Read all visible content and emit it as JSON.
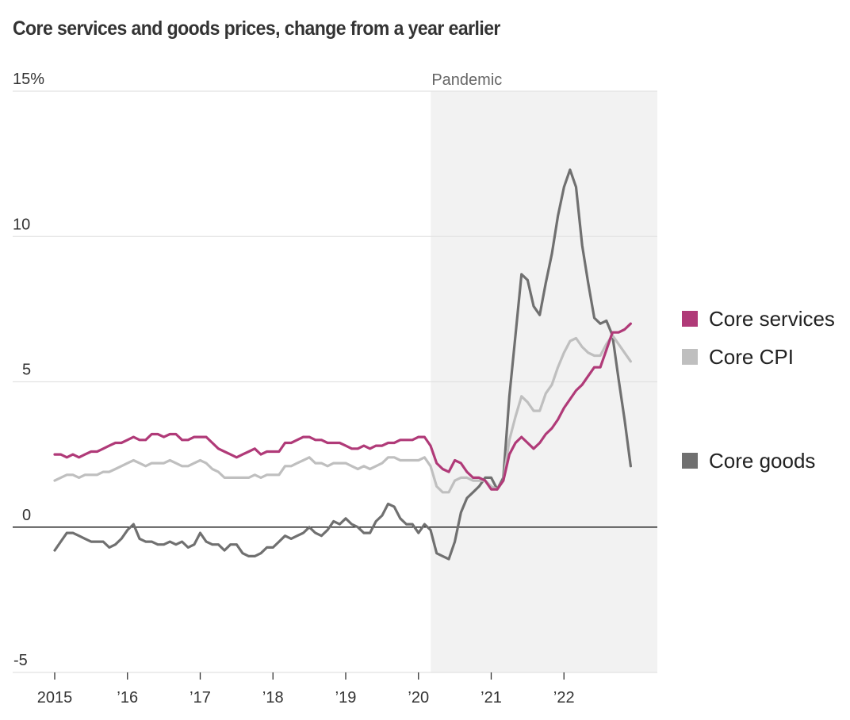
{
  "chart_data": {
    "type": "line",
    "title": "Core services and goods prices, change from a year earlier",
    "xlabel": "",
    "ylabel": "",
    "y_unit": "%",
    "ylim": [
      -5,
      15
    ],
    "yticks": [
      {
        "value": 15,
        "label": "15%"
      },
      {
        "value": 10,
        "label": "10"
      },
      {
        "value": 5,
        "label": "5"
      },
      {
        "value": 0,
        "label": "0"
      },
      {
        "value": -5,
        "label": "-5"
      }
    ],
    "xlim": [
      2015.0,
      2023.0
    ],
    "xticks": [
      {
        "value": 2015,
        "label": "2015"
      },
      {
        "value": 2016,
        "label": "’16"
      },
      {
        "value": 2017,
        "label": "’17"
      },
      {
        "value": 2018,
        "label": "’18"
      },
      {
        "value": 2019,
        "label": "’19"
      },
      {
        "value": 2020,
        "label": "’20"
      },
      {
        "value": 2021,
        "label": "’21"
      },
      {
        "value": 2022,
        "label": "’22"
      }
    ],
    "grid": true,
    "x_start": 2015.0,
    "x_step_months": 1,
    "annotation_band": {
      "label": "Pandemic",
      "from": 2020.17,
      "to": 2023.0
    },
    "legend_position": "right",
    "series": [
      {
        "name": "Core services",
        "color": "#b03a78",
        "values": [
          2.5,
          2.5,
          2.4,
          2.5,
          2.4,
          2.5,
          2.6,
          2.6,
          2.7,
          2.8,
          2.9,
          2.9,
          3.0,
          3.1,
          3.0,
          3.0,
          3.2,
          3.2,
          3.1,
          3.2,
          3.2,
          3.0,
          3.0,
          3.1,
          3.1,
          3.1,
          2.9,
          2.7,
          2.6,
          2.5,
          2.4,
          2.5,
          2.6,
          2.7,
          2.5,
          2.6,
          2.6,
          2.6,
          2.9,
          2.9,
          3.0,
          3.1,
          3.1,
          3.0,
          3.0,
          2.9,
          2.9,
          2.9,
          2.8,
          2.7,
          2.7,
          2.8,
          2.7,
          2.8,
          2.8,
          2.9,
          2.9,
          3.0,
          3.0,
          3.0,
          3.1,
          3.1,
          2.8,
          2.2,
          2.0,
          1.9,
          2.3,
          2.2,
          1.9,
          1.7,
          1.7,
          1.6,
          1.3,
          1.3,
          1.6,
          2.5,
          2.9,
          3.1,
          2.9,
          2.7,
          2.9,
          3.2,
          3.4,
          3.7,
          4.1,
          4.4,
          4.7,
          4.9,
          5.2,
          5.5,
          5.5,
          6.1,
          6.7,
          6.7,
          6.8,
          7.0
        ]
      },
      {
        "name": "Core CPI",
        "color": "#bfbfbf",
        "values": [
          1.6,
          1.7,
          1.8,
          1.8,
          1.7,
          1.8,
          1.8,
          1.8,
          1.9,
          1.9,
          2.0,
          2.1,
          2.2,
          2.3,
          2.2,
          2.1,
          2.2,
          2.2,
          2.2,
          2.3,
          2.2,
          2.1,
          2.1,
          2.2,
          2.3,
          2.2,
          2.0,
          1.9,
          1.7,
          1.7,
          1.7,
          1.7,
          1.7,
          1.8,
          1.7,
          1.8,
          1.8,
          1.8,
          2.1,
          2.1,
          2.2,
          2.3,
          2.4,
          2.2,
          2.2,
          2.1,
          2.2,
          2.2,
          2.2,
          2.1,
          2.0,
          2.1,
          2.0,
          2.1,
          2.2,
          2.4,
          2.4,
          2.3,
          2.3,
          2.3,
          2.3,
          2.4,
          2.1,
          1.4,
          1.2,
          1.2,
          1.6,
          1.7,
          1.7,
          1.6,
          1.6,
          1.6,
          1.4,
          1.3,
          1.6,
          3.0,
          3.8,
          4.5,
          4.3,
          4.0,
          4.0,
          4.6,
          4.9,
          5.5,
          6.0,
          6.4,
          6.5,
          6.2,
          6.0,
          5.9,
          5.9,
          6.3,
          6.6,
          6.3,
          6.0,
          5.7
        ]
      },
      {
        "name": "Core goods",
        "color": "#707070",
        "values": [
          -0.8,
          -0.5,
          -0.2,
          -0.2,
          -0.3,
          -0.4,
          -0.5,
          -0.5,
          -0.5,
          -0.7,
          -0.6,
          -0.4,
          -0.1,
          0.1,
          -0.4,
          -0.5,
          -0.5,
          -0.6,
          -0.6,
          -0.5,
          -0.6,
          -0.5,
          -0.7,
          -0.6,
          -0.2,
          -0.5,
          -0.6,
          -0.6,
          -0.8,
          -0.6,
          -0.6,
          -0.9,
          -1.0,
          -1.0,
          -0.9,
          -0.7,
          -0.7,
          -0.5,
          -0.3,
          -0.4,
          -0.3,
          -0.2,
          0.0,
          -0.2,
          -0.3,
          -0.1,
          0.2,
          0.1,
          0.3,
          0.1,
          0.0,
          -0.2,
          -0.2,
          0.2,
          0.4,
          0.8,
          0.7,
          0.3,
          0.1,
          0.1,
          -0.2,
          0.1,
          -0.1,
          -0.9,
          -1.0,
          -1.1,
          -0.5,
          0.5,
          1.0,
          1.2,
          1.4,
          1.7,
          1.7,
          1.3,
          1.7,
          4.5,
          6.6,
          8.7,
          8.5,
          7.6,
          7.3,
          8.4,
          9.4,
          10.7,
          11.7,
          12.3,
          11.7,
          9.7,
          8.4,
          7.2,
          7.0,
          7.1,
          6.6,
          5.1,
          3.7,
          2.1
        ]
      }
    ]
  }
}
